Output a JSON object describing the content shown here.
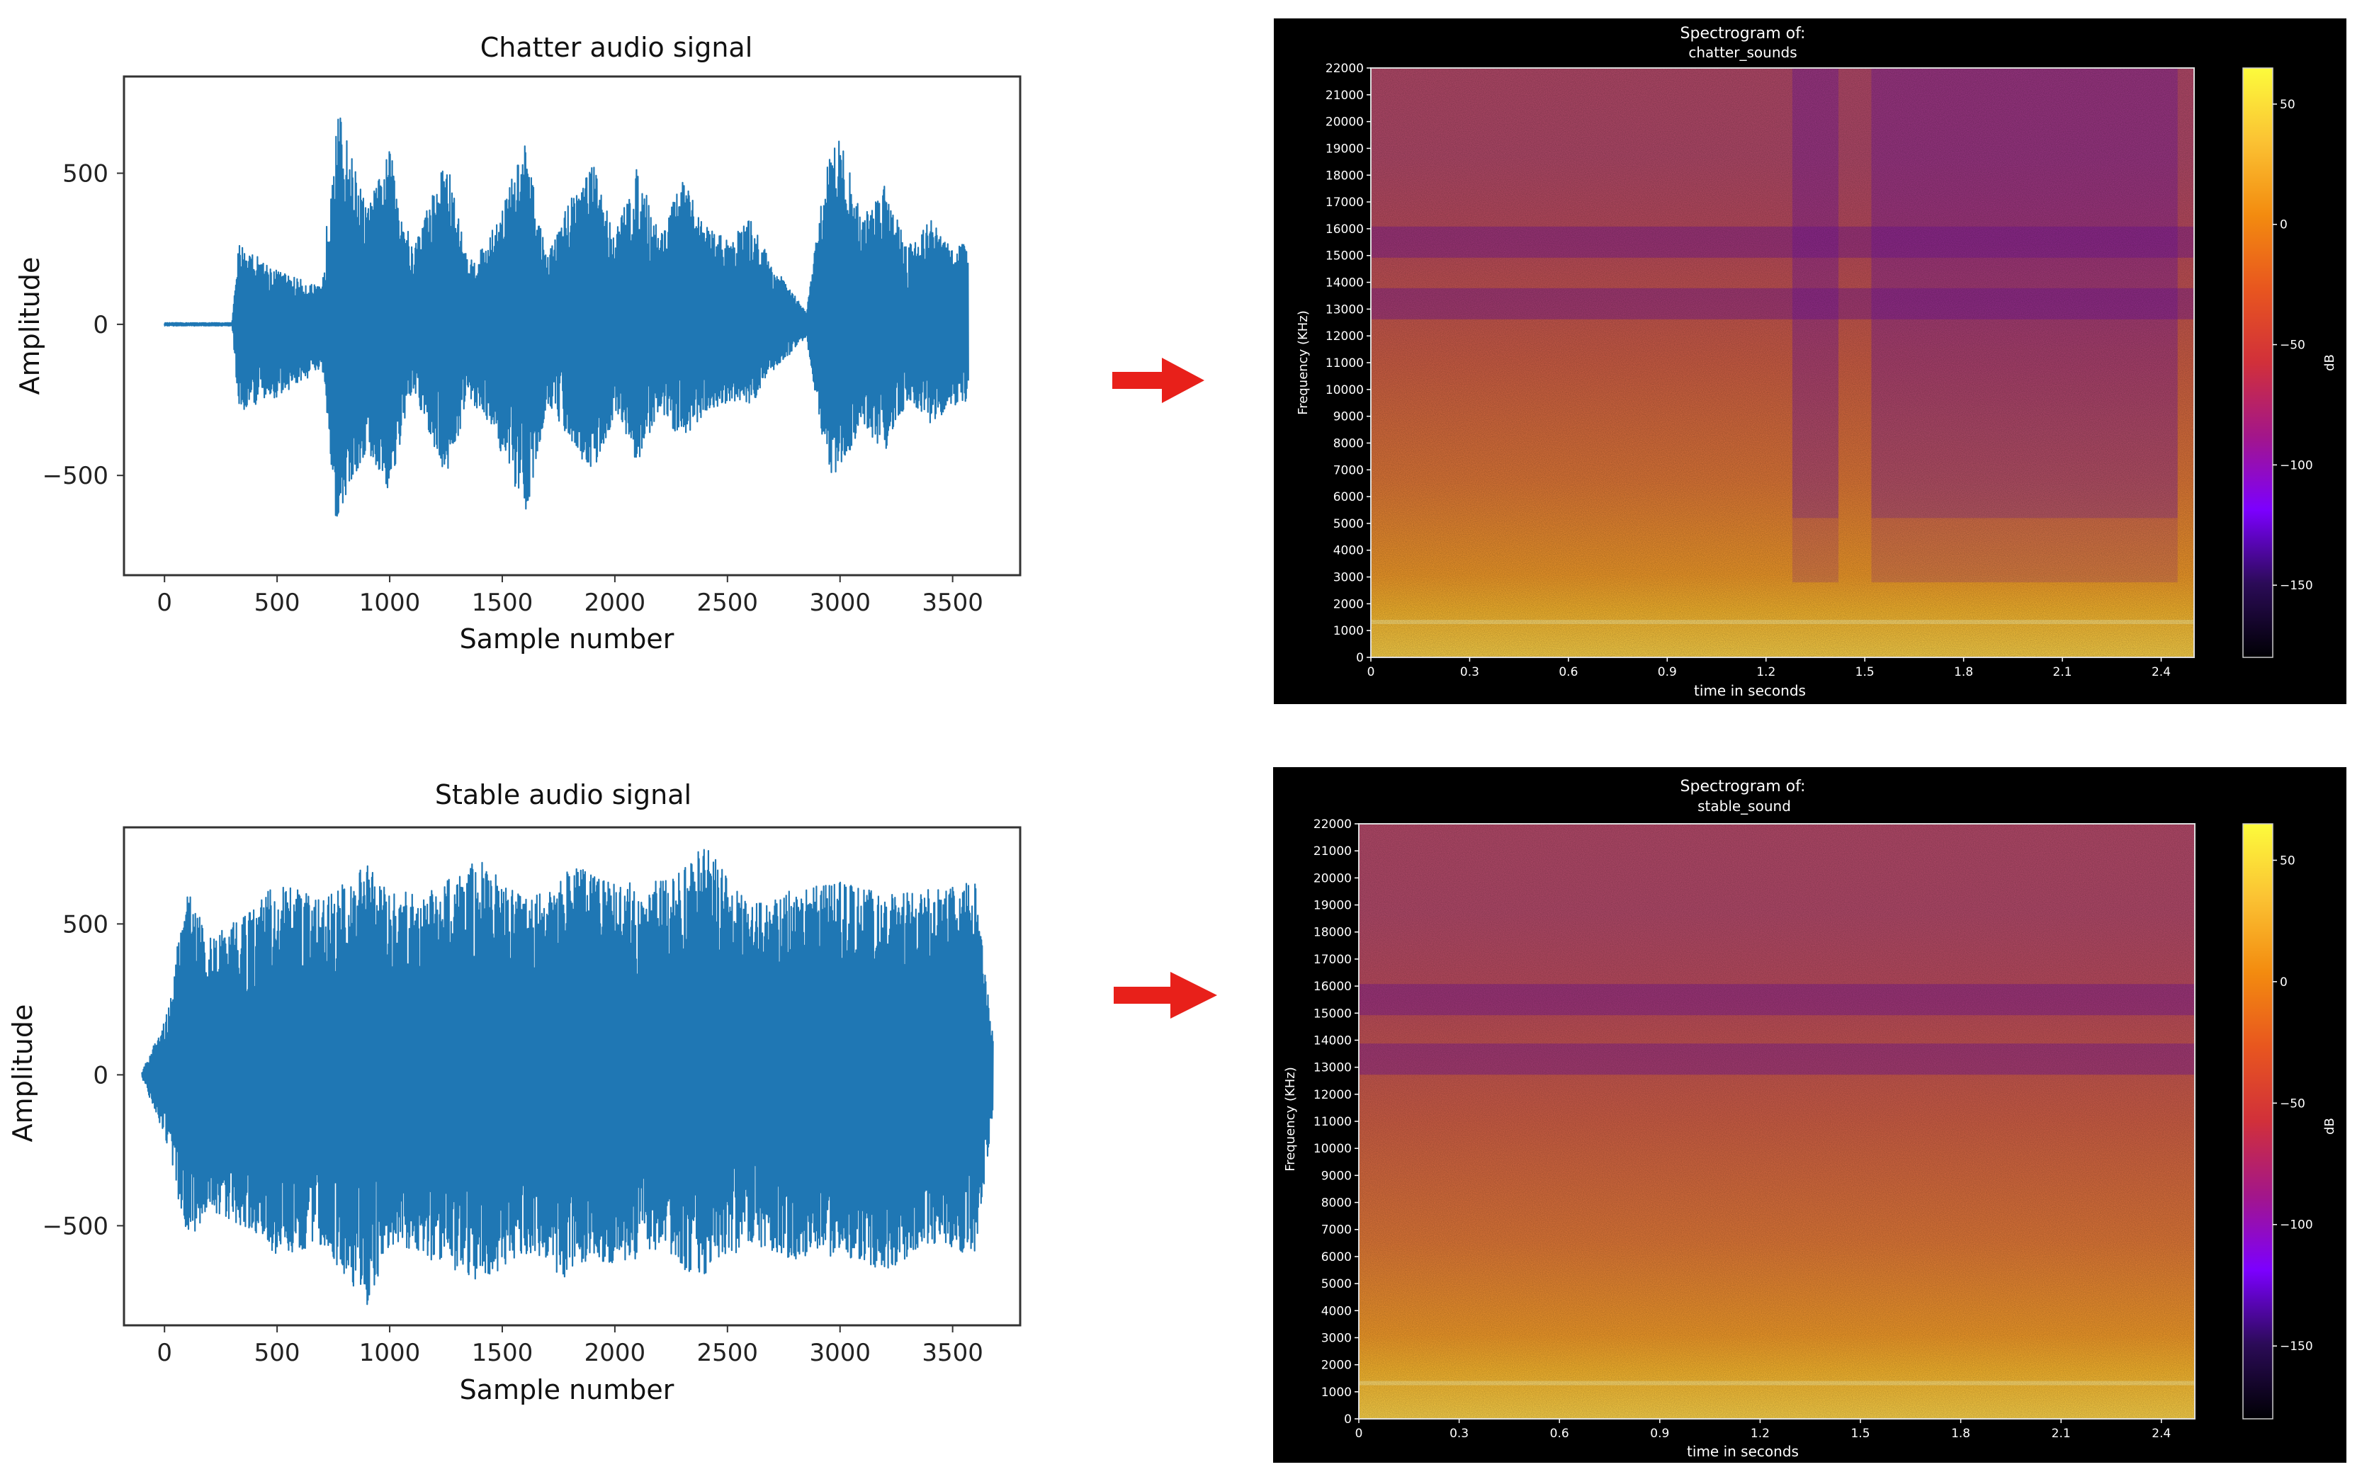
{
  "figures": {
    "chatter_waveform": {
      "title": "Chatter audio signal",
      "xlabel": "Sample number",
      "ylabel": "Amplitude",
      "color": "#1f77b4"
    },
    "stable_waveform": {
      "title": "Stable audio signal",
      "xlabel": "Sample number",
      "ylabel": "Amplitude",
      "color": "#1f77b4"
    },
    "chatter_spectrogram": {
      "title_line1": "Spectrogram of:",
      "title_line2": "chatter_sounds",
      "xlabel": "time in seconds",
      "ylabel": "Frequency (KHz)",
      "colorbar_label": "dB"
    },
    "stable_spectrogram": {
      "title_line1": "Spectrogram of:",
      "title_line2": "stable_sound",
      "xlabel": "time in seconds",
      "ylabel": "Frequency (KHz)",
      "colorbar_label": "dB"
    },
    "arrow_color": "#e8201a",
    "colormap": [
      "#000004",
      "#2b0b57",
      "#7c00ff",
      "#a3168a",
      "#d1303a",
      "#e8561f",
      "#f38b0f",
      "#fbc233",
      "#fcfb3c"
    ]
  },
  "chart_data": [
    {
      "type": "line",
      "title": "Chatter audio signal",
      "xlabel": "Sample number",
      "ylabel": "Amplitude",
      "xlim": [
        -180,
        3800
      ],
      "ylim": [
        -830,
        820
      ],
      "xticks": [
        0,
        500,
        1000,
        1500,
        2000,
        2500,
        3000,
        3500
      ],
      "yticks": [
        -500,
        0,
        500
      ],
      "envelope_x": [
        0,
        300,
        330,
        500,
        700,
        760,
        900,
        1000,
        1100,
        1250,
        1350,
        1450,
        1600,
        1700,
        1800,
        1900,
        2000,
        2100,
        2200,
        2300,
        2400,
        2500,
        2600,
        2700,
        2850,
        2950,
        3000,
        3100,
        3200,
        3300,
        3400,
        3500,
        3570
      ],
      "envelope_upper": [
        5,
        5,
        270,
        180,
        120,
        740,
        380,
        580,
        250,
        560,
        200,
        300,
        600,
        220,
        420,
        540,
        300,
        520,
        300,
        480,
        330,
        280,
        350,
        200,
        40,
        580,
        620,
        350,
        480,
        260,
        350,
        250,
        280
      ],
      "envelope_lower": [
        -5,
        -5,
        -290,
        -240,
        -150,
        -650,
        -420,
        -560,
        -220,
        -510,
        -250,
        -330,
        -650,
        -260,
        -380,
        -500,
        -300,
        -460,
        -290,
        -390,
        -290,
        -260,
        -270,
        -160,
        -40,
        -510,
        -480,
        -340,
        -420,
        -250,
        -330,
        -270,
        -260
      ]
    },
    {
      "type": "line",
      "title": "Stable audio signal",
      "xlabel": "Sample number",
      "ylabel": "Amplitude",
      "xlim": [
        -180,
        3800
      ],
      "ylim": [
        -830,
        820
      ],
      "xticks": [
        0,
        500,
        1000,
        1500,
        2000,
        2500,
        3000,
        3500
      ],
      "yticks": [
        -500,
        0,
        500
      ],
      "envelope_x": [
        -100,
        0,
        100,
        200,
        400,
        500,
        700,
        900,
        1000,
        1200,
        1400,
        1600,
        1800,
        2000,
        2200,
        2400,
        2600,
        2800,
        3000,
        3200,
        3400,
        3600,
        3680
      ],
      "envelope_upper": [
        10,
        180,
        620,
        450,
        560,
        640,
        580,
        700,
        600,
        620,
        720,
        580,
        700,
        630,
        650,
        760,
        560,
        620,
        650,
        600,
        620,
        640,
        120
      ],
      "envelope_lower": [
        -10,
        -200,
        -560,
        -450,
        -520,
        -600,
        -560,
        -770,
        -560,
        -620,
        -700,
        -590,
        -680,
        -620,
        -600,
        -680,
        -560,
        -620,
        -600,
        -650,
        -560,
        -600,
        -120
      ]
    },
    {
      "type": "heatmap",
      "title": "Spectrogram of: chatter_sounds",
      "xlabel": "time in seconds",
      "ylabel": "Frequency (KHz)",
      "xlim": [
        0,
        2.5
      ],
      "ylim": [
        0,
        22000
      ],
      "xticks": [
        0,
        0.3,
        0.6,
        0.9,
        1.2,
        1.5,
        1.8,
        2.1,
        2.4
      ],
      "yticks": [
        0,
        1000,
        2000,
        3000,
        4000,
        5000,
        6000,
        7000,
        8000,
        9000,
        10000,
        11000,
        12000,
        13000,
        14000,
        15000,
        16000,
        17000,
        18000,
        19000,
        20000,
        21000,
        22000
      ],
      "colorbar_ticks": [
        50,
        0,
        -50,
        -100,
        -150
      ],
      "colorbar_range": [
        -180,
        65
      ],
      "colorbar_label": "dB",
      "quiet_segments_seconds": [
        [
          1.28,
          1.42
        ],
        [
          1.52,
          2.45
        ]
      ],
      "band_dips_hz": [
        15500,
        13200
      ]
    },
    {
      "type": "heatmap",
      "title": "Spectrogram of: stable_sound",
      "xlabel": "time in seconds",
      "ylabel": "Frequency (KHz)",
      "xlim": [
        0,
        2.5
      ],
      "ylim": [
        0,
        22000
      ],
      "xticks": [
        0,
        0.3,
        0.6,
        0.9,
        1.2,
        1.5,
        1.8,
        2.1,
        2.4
      ],
      "yticks": [
        0,
        1000,
        2000,
        3000,
        4000,
        5000,
        6000,
        7000,
        8000,
        9000,
        10000,
        11000,
        12000,
        13000,
        14000,
        15000,
        16000,
        17000,
        18000,
        19000,
        20000,
        21000,
        22000
      ],
      "colorbar_ticks": [
        50,
        0,
        -50,
        -100,
        -150
      ],
      "colorbar_range": [
        -180,
        65
      ],
      "colorbar_label": "dB",
      "band_dips_hz": [
        15500,
        13300
      ]
    }
  ]
}
